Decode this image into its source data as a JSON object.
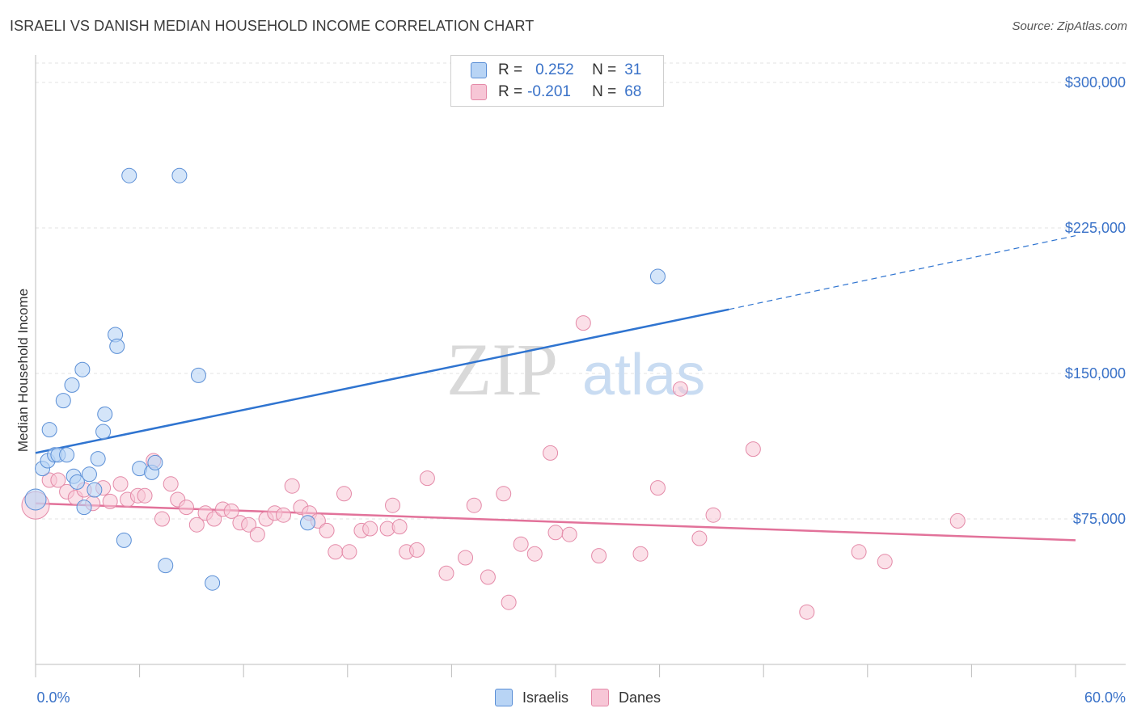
{
  "title": "ISRAELI VS DANISH MEDIAN HOUSEHOLD INCOME CORRELATION CHART",
  "source": "Source: ZipAtlas.com",
  "watermark": {
    "zip": "ZIP",
    "atlas": "atlas"
  },
  "legend": {
    "rows": [
      {
        "r_label": "R =",
        "r_value": "0.252",
        "n_label": "N =",
        "n_value": "31"
      },
      {
        "r_label": "R =",
        "r_value": "-0.201",
        "n_label": "N =",
        "n_value": "68"
      }
    ]
  },
  "bottom_legend": {
    "israelis": "Israelis",
    "danes": "Danes"
  },
  "colors": {
    "israelis_fill": "#b8d4f5",
    "israelis_stroke": "#5b8fd6",
    "israelis_line": "#2f74d0",
    "danes_fill": "#f7c6d6",
    "danes_stroke": "#e48aa8",
    "danes_line": "#e2729a",
    "tick_text": "#3a72c8"
  },
  "chart_data": {
    "type": "scatter",
    "title": "ISRAELI VS DANISH MEDIAN HOUSEHOLD INCOME CORRELATION CHART",
    "xlabel": "",
    "ylabel": "Median Household Income",
    "xlim": [
      0,
      60
    ],
    "ylim": [
      0,
      310000
    ],
    "x_tick_labels": [
      "0.0%",
      "60.0%"
    ],
    "y_ticks": [
      75000,
      150000,
      225000,
      300000
    ],
    "y_tick_labels": [
      "$75,000",
      "$150,000",
      "$225,000",
      "$300,000"
    ],
    "grid": true,
    "legend_position": "top-center",
    "series": [
      {
        "name": "Israelis",
        "points": [
          [
            0.0,
            85000
          ],
          [
            0.4,
            101000
          ],
          [
            0.7,
            105000
          ],
          [
            0.8,
            121000
          ],
          [
            1.1,
            108000
          ],
          [
            1.3,
            108000
          ],
          [
            1.6,
            136000
          ],
          [
            1.8,
            108000
          ],
          [
            2.1,
            144000
          ],
          [
            2.2,
            97000
          ],
          [
            2.4,
            94000
          ],
          [
            2.7,
            152000
          ],
          [
            2.8,
            81000
          ],
          [
            3.1,
            98000
          ],
          [
            3.4,
            90000
          ],
          [
            3.6,
            106000
          ],
          [
            3.9,
            120000
          ],
          [
            4.0,
            129000
          ],
          [
            4.6,
            170000
          ],
          [
            4.7,
            164000
          ],
          [
            5.1,
            64000
          ],
          [
            5.4,
            252000
          ],
          [
            6.0,
            101000
          ],
          [
            6.7,
            99000
          ],
          [
            6.9,
            104000
          ],
          [
            7.5,
            51000
          ],
          [
            8.3,
            252000
          ],
          [
            9.4,
            149000
          ],
          [
            10.2,
            42000
          ],
          [
            15.7,
            73000
          ],
          [
            35.9,
            200000
          ]
        ],
        "trend": {
          "x": [
            0,
            40,
            60
          ],
          "y": [
            109000,
            183000,
            221000
          ],
          "solid_until": 40
        }
      },
      {
        "name": "Danes",
        "points": [
          [
            0.0,
            82000
          ],
          [
            0.8,
            95000
          ],
          [
            1.3,
            95000
          ],
          [
            1.8,
            89000
          ],
          [
            2.3,
            86000
          ],
          [
            2.8,
            90000
          ],
          [
            3.3,
            83000
          ],
          [
            3.9,
            91000
          ],
          [
            4.3,
            84000
          ],
          [
            4.9,
            93000
          ],
          [
            5.3,
            85000
          ],
          [
            5.9,
            87000
          ],
          [
            6.3,
            87000
          ],
          [
            6.8,
            105000
          ],
          [
            7.3,
            75000
          ],
          [
            7.8,
            93000
          ],
          [
            8.2,
            85000
          ],
          [
            8.7,
            81000
          ],
          [
            9.3,
            72000
          ],
          [
            9.8,
            78000
          ],
          [
            10.3,
            75000
          ],
          [
            10.8,
            80000
          ],
          [
            11.3,
            79000
          ],
          [
            11.8,
            73000
          ],
          [
            12.3,
            72000
          ],
          [
            12.8,
            67000
          ],
          [
            13.3,
            75000
          ],
          [
            13.8,
            78000
          ],
          [
            14.3,
            77000
          ],
          [
            14.8,
            92000
          ],
          [
            15.3,
            81000
          ],
          [
            15.8,
            78000
          ],
          [
            16.3,
            74000
          ],
          [
            16.8,
            69000
          ],
          [
            17.3,
            58000
          ],
          [
            17.8,
            88000
          ],
          [
            18.1,
            58000
          ],
          [
            18.8,
            69000
          ],
          [
            19.3,
            70000
          ],
          [
            20.3,
            70000
          ],
          [
            20.6,
            82000
          ],
          [
            21.0,
            71000
          ],
          [
            21.4,
            58000
          ],
          [
            22.0,
            59000
          ],
          [
            22.6,
            96000
          ],
          [
            23.7,
            47000
          ],
          [
            24.8,
            55000
          ],
          [
            25.3,
            82000
          ],
          [
            26.1,
            45000
          ],
          [
            27.0,
            88000
          ],
          [
            27.3,
            32000
          ],
          [
            28.0,
            62000
          ],
          [
            28.8,
            57000
          ],
          [
            29.7,
            109000
          ],
          [
            30.0,
            68000
          ],
          [
            30.8,
            67000
          ],
          [
            31.6,
            176000
          ],
          [
            32.5,
            56000
          ],
          [
            34.9,
            57000
          ],
          [
            35.9,
            91000
          ],
          [
            37.2,
            142000
          ],
          [
            38.3,
            65000
          ],
          [
            39.1,
            77000
          ],
          [
            41.4,
            111000
          ],
          [
            44.5,
            27000
          ],
          [
            47.5,
            58000
          ],
          [
            49.0,
            53000
          ],
          [
            53.2,
            74000
          ]
        ],
        "trend": {
          "x": [
            0,
            60
          ],
          "y": [
            83000,
            64000
          ]
        }
      }
    ]
  }
}
